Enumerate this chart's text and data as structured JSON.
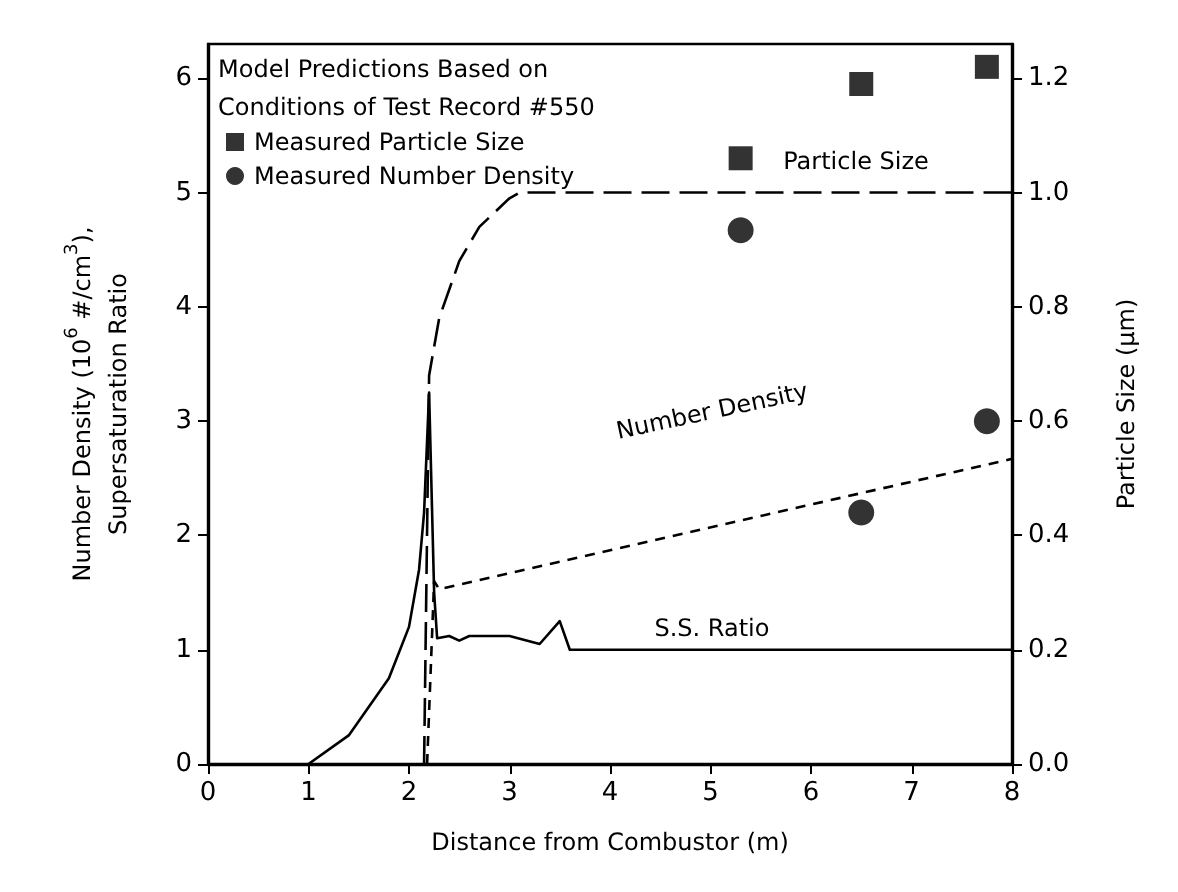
{
  "chart_data": {
    "type": "line",
    "xlabel": "Distance from Combustor (m)",
    "ylabel": "Number Density (10$^{6}$ #/cm$^{3}$),\nSupersaturation Ratio",
    "y2label": "Particle Size (μm)",
    "legend_title": "Model Predictions Based on\nConditions of Test Record #550",
    "xlim": [
      0,
      8
    ],
    "xticks": [
      0,
      1,
      2,
      3,
      4,
      5,
      6,
      7,
      8
    ],
    "ylim": [
      0,
      6.3
    ],
    "yticks": [
      0,
      1,
      2,
      3,
      4,
      5,
      6
    ],
    "y2lim": [
      0,
      1.26
    ],
    "y2ticks": [
      {
        "value": 0,
        "label": "0.0"
      },
      {
        "value": 0.2,
        "label": "0.2"
      },
      {
        "value": 0.4,
        "label": "0.4"
      },
      {
        "value": 0.6,
        "label": "0.6"
      },
      {
        "value": 0.8,
        "label": "0.8"
      },
      {
        "value": 1.0,
        "label": "1.0"
      },
      {
        "value": 1.2,
        "label": "1.2"
      }
    ],
    "grid": false,
    "legend": "top left",
    "series": [
      {
        "name": "Particle Size",
        "axis": "y2",
        "color": "#000000",
        "line_style": "dashed",
        "marker": "none",
        "x": [
          2.15,
          2.2,
          2.3,
          2.5,
          2.7,
          3.0,
          3.1,
          8
        ],
        "values": [
          0,
          0.68,
          0.78,
          0.88,
          0.94,
          0.99,
          1.0,
          1.0
        ]
      },
      {
        "name": "Number Density",
        "color": "#000000",
        "line_style": "dotted",
        "marker": "none",
        "x": [
          2.18,
          2.25,
          2.3,
          8
        ],
        "values": [
          0,
          1.6,
          1.53,
          2.67
        ]
      },
      {
        "name": "S.S. Ratio",
        "color": "#000000",
        "line_style": "solid",
        "marker": "none",
        "x": [
          1,
          1.4,
          1.8,
          2.0,
          2.1,
          2.15,
          2.2,
          2.25,
          2.28,
          2.4,
          2.5,
          2.6,
          3.0,
          3.3,
          3.5,
          3.6,
          8
        ],
        "values": [
          0,
          0.25,
          0.75,
          1.2,
          1.7,
          2.2,
          3.25,
          1.5,
          1.1,
          1.12,
          1.08,
          1.12,
          1.12,
          1.05,
          1.25,
          1.0,
          1.0
        ]
      },
      {
        "name": "Measured Particle Size",
        "type": "scatter",
        "axis": "y2",
        "color": "#000000",
        "marker": "square",
        "x": [
          5.3,
          6.5,
          7.75
        ],
        "values": [
          1.06,
          1.19,
          1.22
        ]
      },
      {
        "name": "Measured Number Density",
        "type": "scatter",
        "color": "#000000",
        "marker": "circle",
        "x": [
          5.3,
          6.5,
          7.75
        ],
        "values": [
          4.67,
          2.2,
          3.0
        ]
      }
    ]
  }
}
